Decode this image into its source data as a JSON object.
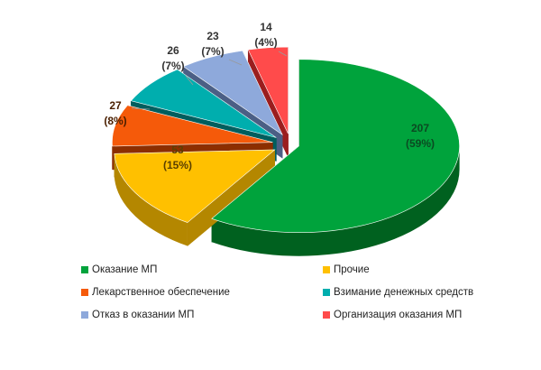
{
  "chart_data": {
    "type": "pie",
    "title": "",
    "legend_position": "bottom",
    "slices": [
      {
        "name": "Оказание  МП",
        "value": 207,
        "percent": "59%",
        "color": "#00A33C",
        "side": "#00611F"
      },
      {
        "name": "Прочие",
        "value": 53,
        "percent": "15%",
        "color": "#FFC000",
        "side": "#B48700"
      },
      {
        "name": "Лекарственное  обеспечение",
        "value": 27,
        "percent": "8%",
        "color": "#F55A0A",
        "side": "#8C2E00"
      },
      {
        "name": "Взимание  денежных средств",
        "value": 26,
        "percent": "7%",
        "color": "#00AEAE",
        "side": "#005E5E"
      },
      {
        "name": "Отказ в оказании  МП",
        "value": 23,
        "percent": "7%",
        "color": "#8EA9DB",
        "side": "#4B5F85"
      },
      {
        "name": "Организация  оказания  МП",
        "value": 14,
        "percent": "4%",
        "color": "#FF4B4B",
        "side": "#9B1E1E"
      }
    ],
    "data_labels": [
      {
        "value": "207",
        "percent": "(59%)"
      },
      {
        "value": "53",
        "percent": "(15%)"
      },
      {
        "value": "27",
        "percent": "(8%)"
      },
      {
        "value": "26",
        "percent": "(7%)"
      },
      {
        "value": "23",
        "percent": "(7%)"
      },
      {
        "value": "14",
        "percent": "(4%)"
      }
    ]
  },
  "legend": [
    {
      "label": "Оказание  МП",
      "color": "#00A33C"
    },
    {
      "label": "Прочие",
      "color": "#FFC000"
    },
    {
      "label": "Лекарственное  обеспечение",
      "color": "#F55A0A"
    },
    {
      "label": "Взимание  денежных средств",
      "color": "#00AEAE"
    },
    {
      "label": "Отказ в оказании  МП",
      "color": "#8EA9DB"
    },
    {
      "label": "Организация  оказания  МП",
      "color": "#FF4B4B"
    }
  ]
}
